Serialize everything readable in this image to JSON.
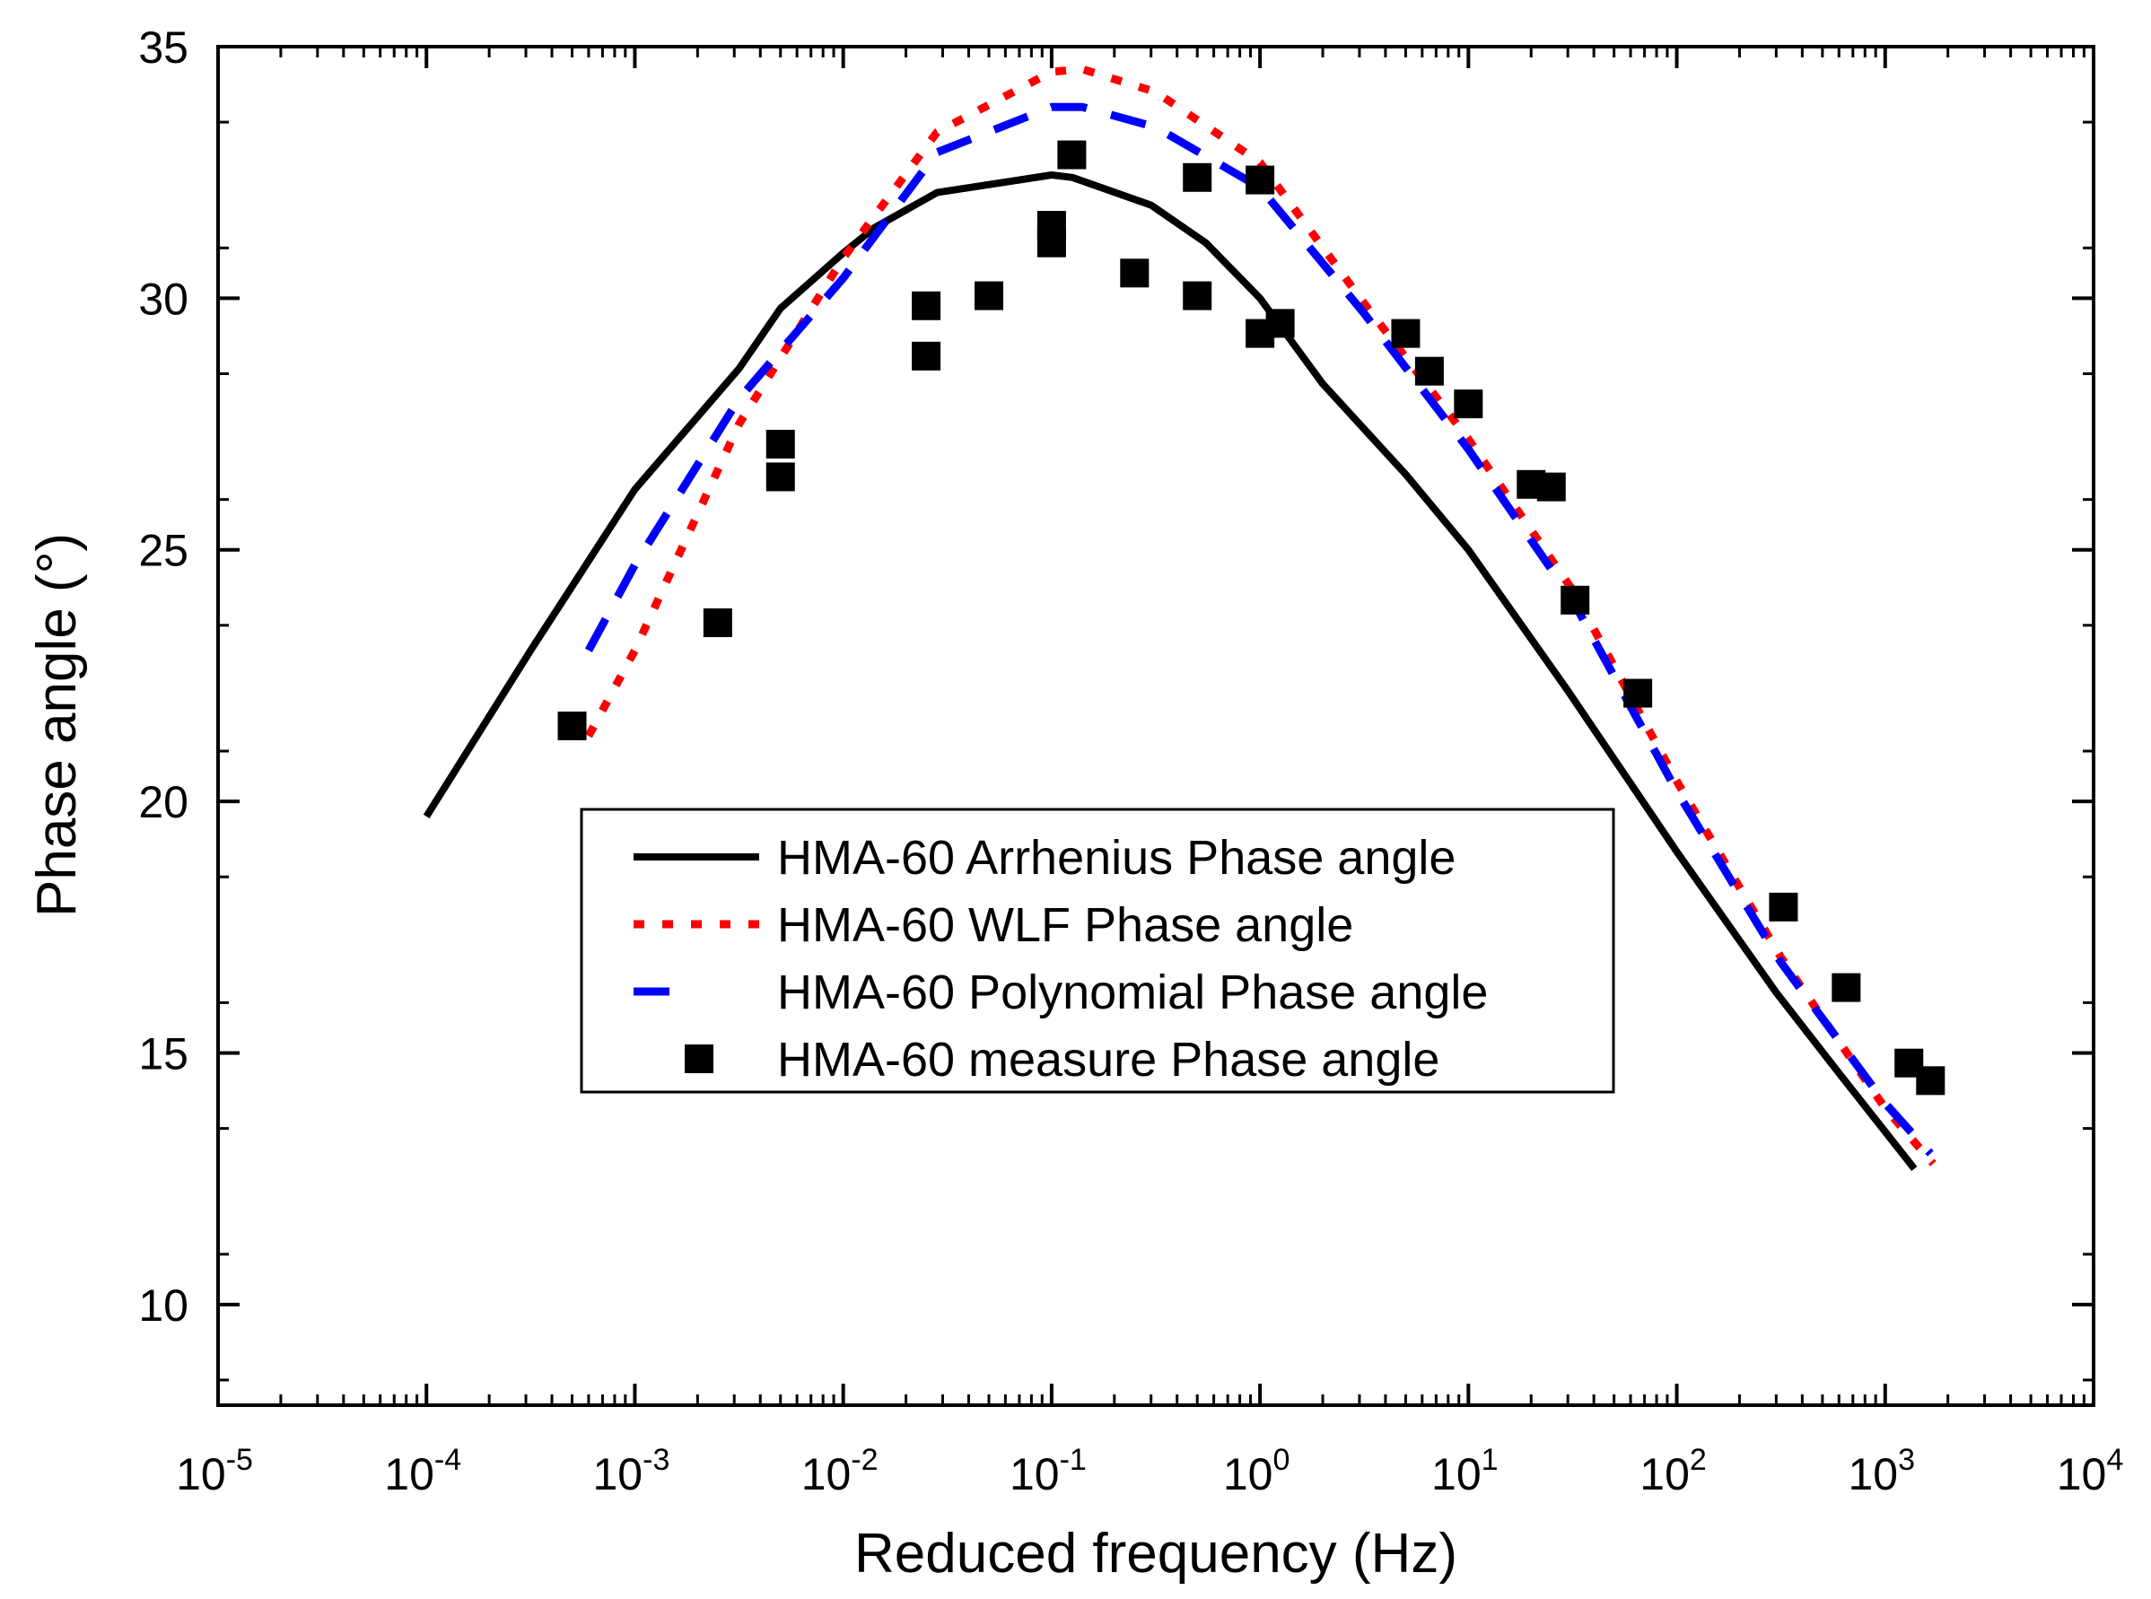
{
  "chart_data": {
    "type": "line",
    "xscale": "log",
    "xlabel": "Reduced frequency (Hz)",
    "ylabel": "Phase angle (°)",
    "xlim": [
      1e-05,
      10000.0
    ],
    "ylim": [
      8,
      35
    ],
    "x_ticks": [
      {
        "base": "10",
        "exp": "-5"
      },
      {
        "base": "10",
        "exp": "-4"
      },
      {
        "base": "10",
        "exp": "-3"
      },
      {
        "base": "10",
        "exp": "-2"
      },
      {
        "base": "10",
        "exp": "-1"
      },
      {
        "base": "10",
        "exp": "0"
      },
      {
        "base": "10",
        "exp": "1"
      },
      {
        "base": "10",
        "exp": "2"
      },
      {
        "base": "10",
        "exp": "3"
      },
      {
        "base": "10",
        "exp": "4"
      }
    ],
    "y_ticks": [
      "10",
      "15",
      "20",
      "25",
      "30",
      "35"
    ],
    "legend_position": "center-left",
    "series": [
      {
        "name": "HMA-60 Arrhenius Phase angle",
        "style": "solid",
        "color": "#000000",
        "x": [
          0.0001,
          0.000316,
          0.001,
          0.00316,
          0.005,
          0.01,
          0.0141,
          0.0282,
          0.1,
          0.126,
          0.3,
          0.55,
          1.0,
          2.0,
          5.0,
          10.0,
          30.0,
          100.0,
          300.0,
          600.0,
          1380.0
        ],
        "y": [
          19.7,
          23.0,
          26.2,
          28.6,
          29.8,
          30.9,
          31.4,
          32.1,
          32.45,
          32.4,
          31.85,
          31.1,
          30.0,
          28.3,
          26.5,
          25.0,
          22.2,
          19.0,
          16.2,
          14.6,
          12.7
        ]
      },
      {
        "name": "HMA-60 WLF Phase angle",
        "style": "dotted",
        "color": "#ff0000",
        "x": [
          0.0006,
          0.001,
          0.00316,
          0.01,
          0.0282,
          0.1,
          0.141,
          0.316,
          1.0,
          3.16,
          10.0,
          31.6,
          100.0,
          316.0,
          1000.0,
          1700.0
        ],
        "y": [
          21.3,
          23.0,
          27.5,
          30.8,
          33.3,
          34.5,
          34.55,
          34.1,
          32.7,
          29.9,
          27.2,
          24.2,
          20.4,
          16.9,
          13.9,
          12.8
        ]
      },
      {
        "name": "HMA-60 Polynomial Phase angle",
        "style": "dashed",
        "color": "#0000ff",
        "x": [
          0.0006,
          0.001,
          0.00316,
          0.01,
          0.0282,
          0.1,
          0.141,
          0.316,
          1.0,
          3.16,
          10.0,
          31.6,
          100.0,
          316.0,
          1000.0,
          1650.0
        ],
        "y": [
          23.0,
          24.7,
          28.0,
          30.4,
          32.9,
          33.8,
          33.8,
          33.4,
          32.2,
          29.7,
          27.0,
          24.0,
          20.2,
          16.8,
          14.0,
          13.0
        ]
      },
      {
        "name": "HMA-60 measure Phase angle",
        "style": "markers",
        "marker": "square",
        "color": "#000000",
        "x": [
          0.0005,
          0.0025,
          0.005,
          0.005,
          0.025,
          0.025,
          0.05,
          0.1,
          0.1,
          0.125,
          0.25,
          0.5,
          0.5,
          1.0,
          1.0,
          1.25,
          5.0,
          6.5,
          10.0,
          20.0,
          25.0,
          32.5,
          65.0,
          325.0,
          650.0,
          1300.0,
          1650.0
        ],
        "y": [
          21.5,
          23.55,
          27.1,
          26.45,
          29.85,
          28.85,
          30.05,
          31.1,
          31.45,
          32.85,
          30.5,
          32.4,
          30.05,
          32.35,
          29.3,
          29.5,
          29.3,
          28.55,
          27.9,
          26.3,
          26.25,
          24.0,
          22.15,
          17.9,
          16.3,
          14.8,
          14.45
        ]
      }
    ]
  }
}
